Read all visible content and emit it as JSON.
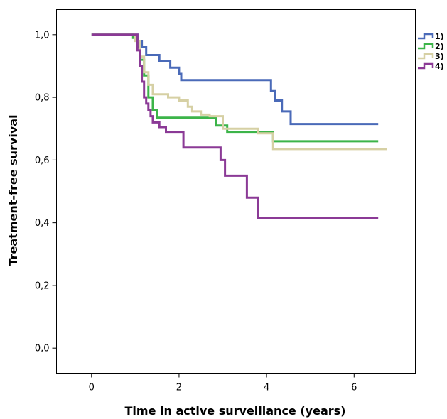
{
  "chart_data": {
    "type": "line",
    "step": true,
    "xlabel": "Time in active surveillance (years)",
    "ylabel": "Treatment-free survival",
    "xlim": [
      -0.8,
      7.4
    ],
    "ylim": [
      -0.08,
      1.08
    ],
    "x_ticks": [
      {
        "value": 0,
        "label": "0"
      },
      {
        "value": 2,
        "label": "2"
      },
      {
        "value": 4,
        "label": "4"
      },
      {
        "value": 6,
        "label": "6"
      }
    ],
    "y_ticks": [
      {
        "value": 0.0,
        "label": "0,0"
      },
      {
        "value": 0.2,
        "label": "0,2"
      },
      {
        "value": 0.4,
        "label": "0,4"
      },
      {
        "value": 0.6,
        "label": "0,6"
      },
      {
        "value": 0.8,
        "label": "0,8"
      },
      {
        "value": 1.0,
        "label": "1,0"
      }
    ],
    "grid": false,
    "legend_position": "top-right",
    "series": [
      {
        "name": "1)",
        "color": "#4a6ab8",
        "points": [
          [
            0,
            1.0
          ],
          [
            1.05,
            1.0
          ],
          [
            1.05,
            0.98
          ],
          [
            1.15,
            0.98
          ],
          [
            1.15,
            0.96
          ],
          [
            1.25,
            0.96
          ],
          [
            1.25,
            0.935
          ],
          [
            1.55,
            0.935
          ],
          [
            1.55,
            0.915
          ],
          [
            1.8,
            0.915
          ],
          [
            1.8,
            0.895
          ],
          [
            2.0,
            0.895
          ],
          [
            2.0,
            0.875
          ],
          [
            2.05,
            0.875
          ],
          [
            2.05,
            0.855
          ],
          [
            4.1,
            0.855
          ],
          [
            4.1,
            0.82
          ],
          [
            4.2,
            0.82
          ],
          [
            4.2,
            0.79
          ],
          [
            4.35,
            0.79
          ],
          [
            4.35,
            0.755
          ],
          [
            4.55,
            0.755
          ],
          [
            4.55,
            0.715
          ],
          [
            6.55,
            0.715
          ]
        ]
      },
      {
        "name": "2)",
        "color": "#3cb449",
        "points": [
          [
            0,
            1.0
          ],
          [
            0.95,
            1.0
          ],
          [
            0.95,
            0.99
          ],
          [
            1.05,
            0.99
          ],
          [
            1.05,
            0.96
          ],
          [
            1.1,
            0.96
          ],
          [
            1.1,
            0.92
          ],
          [
            1.2,
            0.92
          ],
          [
            1.2,
            0.87
          ],
          [
            1.3,
            0.87
          ],
          [
            1.3,
            0.8
          ],
          [
            1.4,
            0.8
          ],
          [
            1.4,
            0.76
          ],
          [
            1.5,
            0.76
          ],
          [
            1.5,
            0.735
          ],
          [
            2.85,
            0.735
          ],
          [
            2.85,
            0.71
          ],
          [
            3.1,
            0.71
          ],
          [
            3.1,
            0.69
          ],
          [
            4.15,
            0.69
          ],
          [
            4.15,
            0.66
          ],
          [
            6.55,
            0.66
          ]
        ]
      },
      {
        "name": "3)",
        "color": "#d6d0a4",
        "points": [
          [
            0,
            1.0
          ],
          [
            1.0,
            1.0
          ],
          [
            1.0,
            0.98
          ],
          [
            1.1,
            0.98
          ],
          [
            1.1,
            0.93
          ],
          [
            1.2,
            0.93
          ],
          [
            1.2,
            0.88
          ],
          [
            1.3,
            0.88
          ],
          [
            1.3,
            0.84
          ],
          [
            1.4,
            0.84
          ],
          [
            1.4,
            0.81
          ],
          [
            1.75,
            0.81
          ],
          [
            1.75,
            0.8
          ],
          [
            2.0,
            0.8
          ],
          [
            2.0,
            0.79
          ],
          [
            2.2,
            0.79
          ],
          [
            2.2,
            0.77
          ],
          [
            2.3,
            0.77
          ],
          [
            2.3,
            0.755
          ],
          [
            2.5,
            0.755
          ],
          [
            2.5,
            0.745
          ],
          [
            2.7,
            0.745
          ],
          [
            2.7,
            0.74
          ],
          [
            3.0,
            0.74
          ],
          [
            3.0,
            0.7
          ],
          [
            3.8,
            0.7
          ],
          [
            3.8,
            0.685
          ],
          [
            4.15,
            0.685
          ],
          [
            4.15,
            0.635
          ],
          [
            6.75,
            0.635
          ]
        ]
      },
      {
        "name": "4)",
        "color": "#8b3a96",
        "points": [
          [
            0,
            1.0
          ],
          [
            1.05,
            1.0
          ],
          [
            1.05,
            0.95
          ],
          [
            1.1,
            0.95
          ],
          [
            1.1,
            0.9
          ],
          [
            1.15,
            0.9
          ],
          [
            1.15,
            0.85
          ],
          [
            1.2,
            0.85
          ],
          [
            1.2,
            0.8
          ],
          [
            1.25,
            0.8
          ],
          [
            1.25,
            0.78
          ],
          [
            1.3,
            0.78
          ],
          [
            1.3,
            0.76
          ],
          [
            1.35,
            0.76
          ],
          [
            1.35,
            0.74
          ],
          [
            1.4,
            0.74
          ],
          [
            1.4,
            0.72
          ],
          [
            1.55,
            0.72
          ],
          [
            1.55,
            0.705
          ],
          [
            1.7,
            0.705
          ],
          [
            1.7,
            0.69
          ],
          [
            2.1,
            0.69
          ],
          [
            2.1,
            0.64
          ],
          [
            2.95,
            0.64
          ],
          [
            2.95,
            0.6
          ],
          [
            3.05,
            0.6
          ],
          [
            3.05,
            0.55
          ],
          [
            3.55,
            0.55
          ],
          [
            3.55,
            0.48
          ],
          [
            3.8,
            0.48
          ],
          [
            3.8,
            0.415
          ],
          [
            6.55,
            0.415
          ]
        ]
      }
    ]
  }
}
